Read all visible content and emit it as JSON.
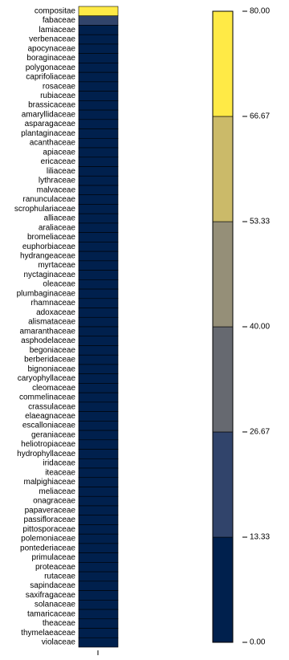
{
  "chart_data": {
    "type": "heatmap",
    "title": "",
    "xlabel": "",
    "ylabel": "",
    "categories": [
      "compositae",
      "fabaceae",
      "lamiaceae",
      "verbenaceae",
      "apocynaceae",
      "boraginaceae",
      "polygonaceae",
      "caprifoliaceae",
      "rosaceae",
      "rubiaceae",
      "brassicaceae",
      "amaryllidaceae",
      "asparagaceae",
      "plantaginaceae",
      "acanthaceae",
      "apiaceae",
      "ericaceae",
      "liliaceae",
      "lythraceae",
      "malvaceae",
      "ranunculaceae",
      "scrophulariaceae",
      "alliaceae",
      "araliaceae",
      "bromeliaceae",
      "euphorbiaceae",
      "hydrangeaceae",
      "myrtaceae",
      "nyctaginaceae",
      "oleaceae",
      "plumbaginaceae",
      "rhamnaceae",
      "adoxaceae",
      "alismataceae",
      "amaranthaceae",
      "asphodelaceae",
      "begoniaceae",
      "berberidaceae",
      "bignoniaceae",
      "caryophyllaceae",
      "cleomaceae",
      "commelinaceae",
      "crassulaceae",
      "elaeagnaceae",
      "escalloniaceae",
      "geraniaceae",
      "heliotropiaceae",
      "hydrophyllaceae",
      "iridaceae",
      "iteaceae",
      "malpighiaceae",
      "meliaceae",
      "onagraceae",
      "papaveraceae",
      "passifloraceae",
      "pittosporaceae",
      "polemoniaceae",
      "pontederiaceae",
      "primulaceae",
      "proteaceae",
      "rutaceae",
      "sapindaceae",
      "saxifragaceae",
      "solanaceae",
      "tamaricaceae",
      "theaceae",
      "thymelaeaceae",
      "violaceae"
    ],
    "values": [
      80,
      18,
      3,
      3,
      2,
      2,
      2,
      2,
      2,
      2,
      2,
      2,
      1,
      1,
      1,
      1,
      1,
      1,
      1,
      1,
      1,
      1,
      1,
      1,
      1,
      1,
      1,
      1,
      1,
      1,
      1,
      1,
      1,
      1,
      1,
      1,
      1,
      1,
      1,
      1,
      1,
      1,
      1,
      1,
      1,
      1,
      1,
      1,
      1,
      1,
      1,
      1,
      1,
      1,
      1,
      1,
      1,
      1,
      1,
      1,
      1,
      1,
      1,
      1,
      1,
      1,
      1,
      1
    ],
    "color_scale": {
      "min": 0,
      "max": 80,
      "breaks": [
        0,
        13.33,
        26.67,
        40,
        53.33,
        66.67,
        80
      ],
      "tick_labels": [
        "0.00",
        "13.33",
        "26.67",
        "40.00",
        "53.33",
        "66.67",
        "80.00"
      ],
      "colors": [
        "#00204d",
        "#31446b",
        "#666970",
        "#958f78",
        "#cbba69",
        "#ffea46"
      ]
    },
    "legend_placement": "right",
    "grid": false
  }
}
